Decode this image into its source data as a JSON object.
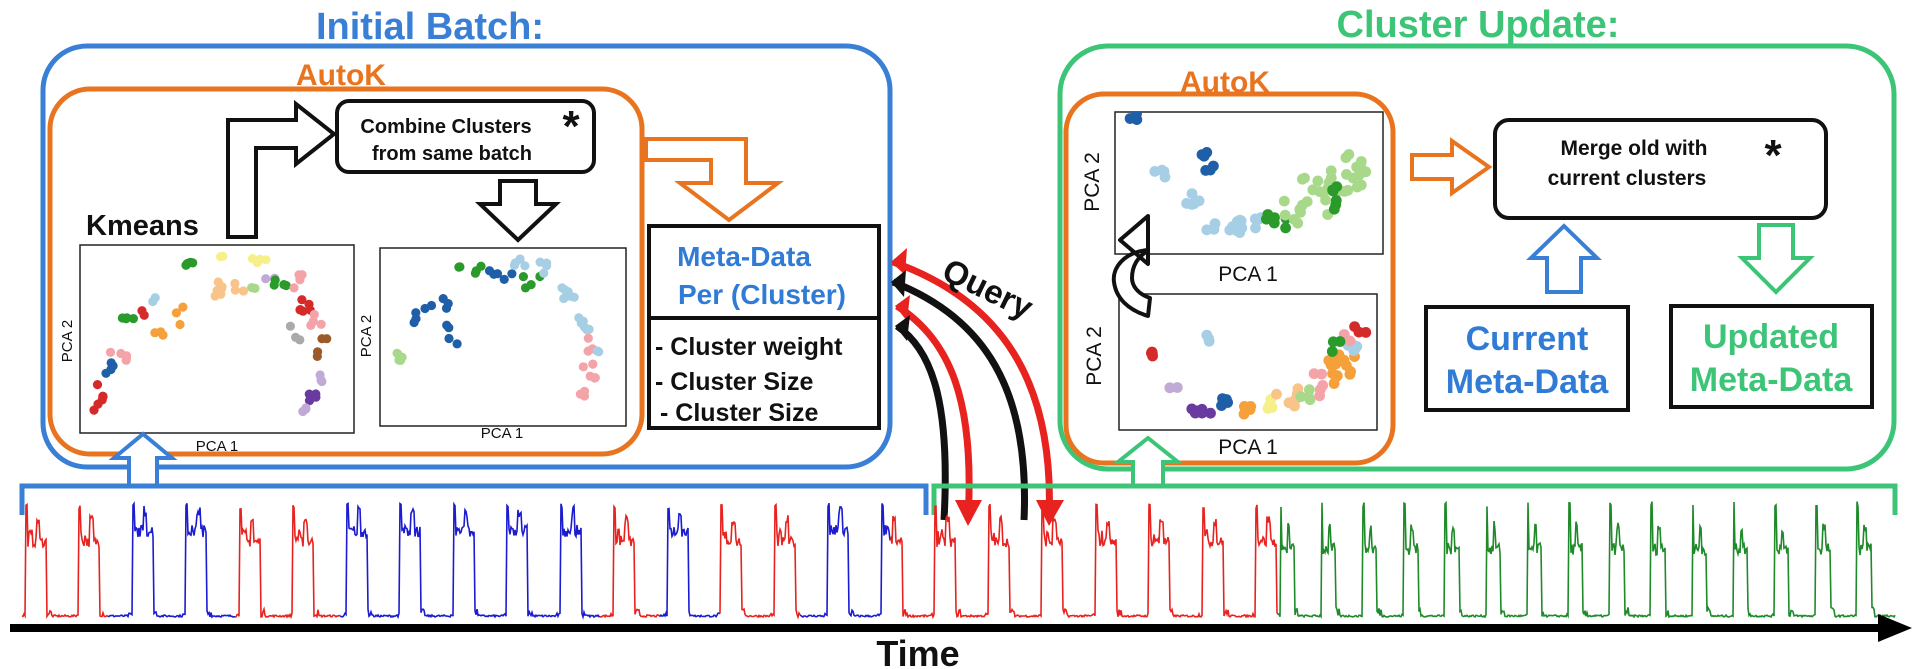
{
  "colors": {
    "blue": "#3a7fd6",
    "green": "#3cc477",
    "orange": "#e8741f",
    "red": "#e8231f",
    "series_blue": "#1b1bd0",
    "series_green": "#1f8a2a"
  },
  "initial_batch": {
    "title": "Initial Batch:",
    "autok": "AutoK",
    "kmeans": "Kmeans",
    "combine_line1": "Combine Clusters",
    "combine_line2": "from same batch",
    "asterisk": "*",
    "plot1": {
      "xlabel": "PCA 1",
      "ylabel": "PCA 2"
    },
    "plot2": {
      "xlabel": "PCA 1",
      "ylabel": "PCA 2"
    },
    "metadata_line1": "Meta-Data",
    "metadata_line2": "Per (Cluster)",
    "items": [
      "- Cluster weight",
      "- Cluster Size",
      "- Cluster Size"
    ]
  },
  "query_label": "Query",
  "cluster_update": {
    "title": "Cluster Update:",
    "autok": "AutoK",
    "plot_top": {
      "xlabel": "PCA 1",
      "ylabel": "PCA 2"
    },
    "plot_bottom": {
      "xlabel": "PCA 1",
      "ylabel": "PCA 2"
    },
    "merge_line1": "Merge old with",
    "merge_line2": "current clusters",
    "asterisk": "*",
    "current_line1": "Current",
    "current_line2": "Meta-Data",
    "updated_line1": "Updated",
    "updated_line2": "Meta-Data"
  },
  "time_label": "Time"
}
